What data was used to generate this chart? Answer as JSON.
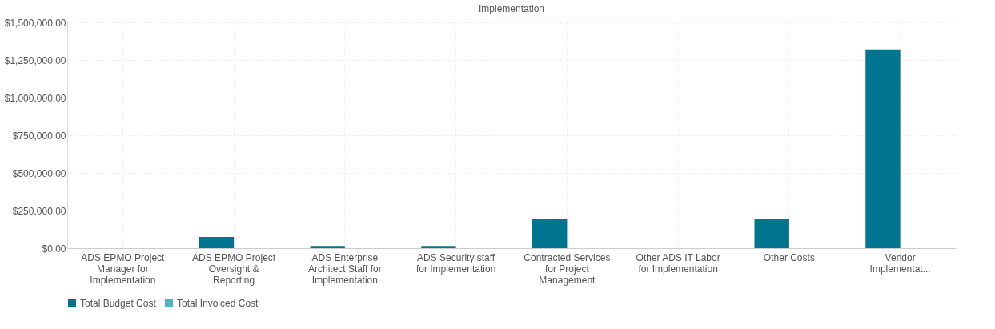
{
  "chart_data": {
    "type": "bar",
    "title": "Implementation",
    "categories": [
      "ADS EPMO Project Manager for Implementation",
      "ADS EPMO Project Oversight & Reporting",
      "ADS Enterprise Architect Staff for Implementation",
      "ADS Security staff for Implementation",
      "Contracted Services for Project Management",
      "Other ADS IT Labor for Implementation",
      "Other Costs",
      "Vendor Implementat..."
    ],
    "series": [
      {
        "name": "Total Budget Cost",
        "color": "#00758f",
        "values": [
          0,
          75000,
          15000,
          15000,
          195000,
          0,
          195000,
          1320000
        ]
      },
      {
        "name": "Total Invoiced Cost",
        "color": "#4ab5c4",
        "values": [
          0,
          0,
          0,
          0,
          0,
          0,
          0,
          0
        ]
      }
    ],
    "ylim": [
      0,
      1500000
    ],
    "yticks": [
      {
        "value": 0,
        "label": "$0.00"
      },
      {
        "value": 250000,
        "label": "$250,000.00"
      },
      {
        "value": 500000,
        "label": "$500,000.00"
      },
      {
        "value": 750000,
        "label": "$750,000.00"
      },
      {
        "value": 1000000,
        "label": "$1,000,000.00"
      },
      {
        "value": 1250000,
        "label": "$1,250,000.00"
      },
      {
        "value": 1500000,
        "label": "$1,500,000.00"
      }
    ],
    "grid": true,
    "legend": "bottom"
  }
}
